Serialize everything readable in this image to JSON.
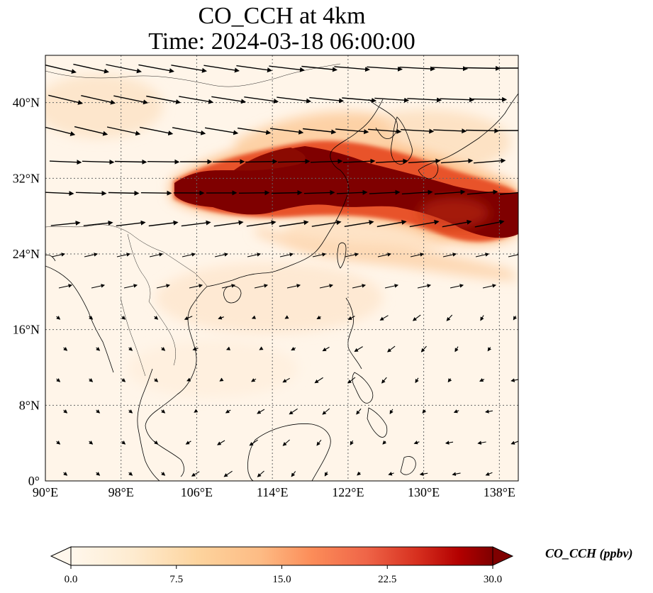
{
  "title": {
    "line1": "CO_CCH at 4km",
    "line2": "Time: 2024-03-18 06:00:00"
  },
  "map": {
    "lon_ticks": [
      "90°E",
      "98°E",
      "106°E",
      "114°E",
      "122°E",
      "130°E",
      "138°E"
    ],
    "lat_ticks": [
      "0°",
      "8°N",
      "16°N",
      "24°N",
      "32°N",
      "40°N"
    ],
    "lon_values": [
      90,
      98,
      106,
      114,
      122,
      130,
      138
    ],
    "lat_values": [
      0,
      8,
      16,
      24,
      32,
      40
    ],
    "extent": {
      "lon_min": 90,
      "lon_max": 140,
      "lat_min": 0,
      "lat_max": 45
    },
    "gridlines": "dotted",
    "plume_color_scale": [
      "#fff5eb",
      "#fdd9b4",
      "#fda762",
      "#f3701b",
      "#c54102",
      "#7f0000"
    ]
  },
  "colorbar": {
    "ticks": [
      "0.0",
      "7.5",
      "15.0",
      "22.5",
      "30.0"
    ],
    "values": [
      0,
      7.5,
      15,
      22.5,
      30
    ],
    "label": "CO_CCH (ppbv)",
    "cmap": "OrRd",
    "extend": "both"
  }
}
